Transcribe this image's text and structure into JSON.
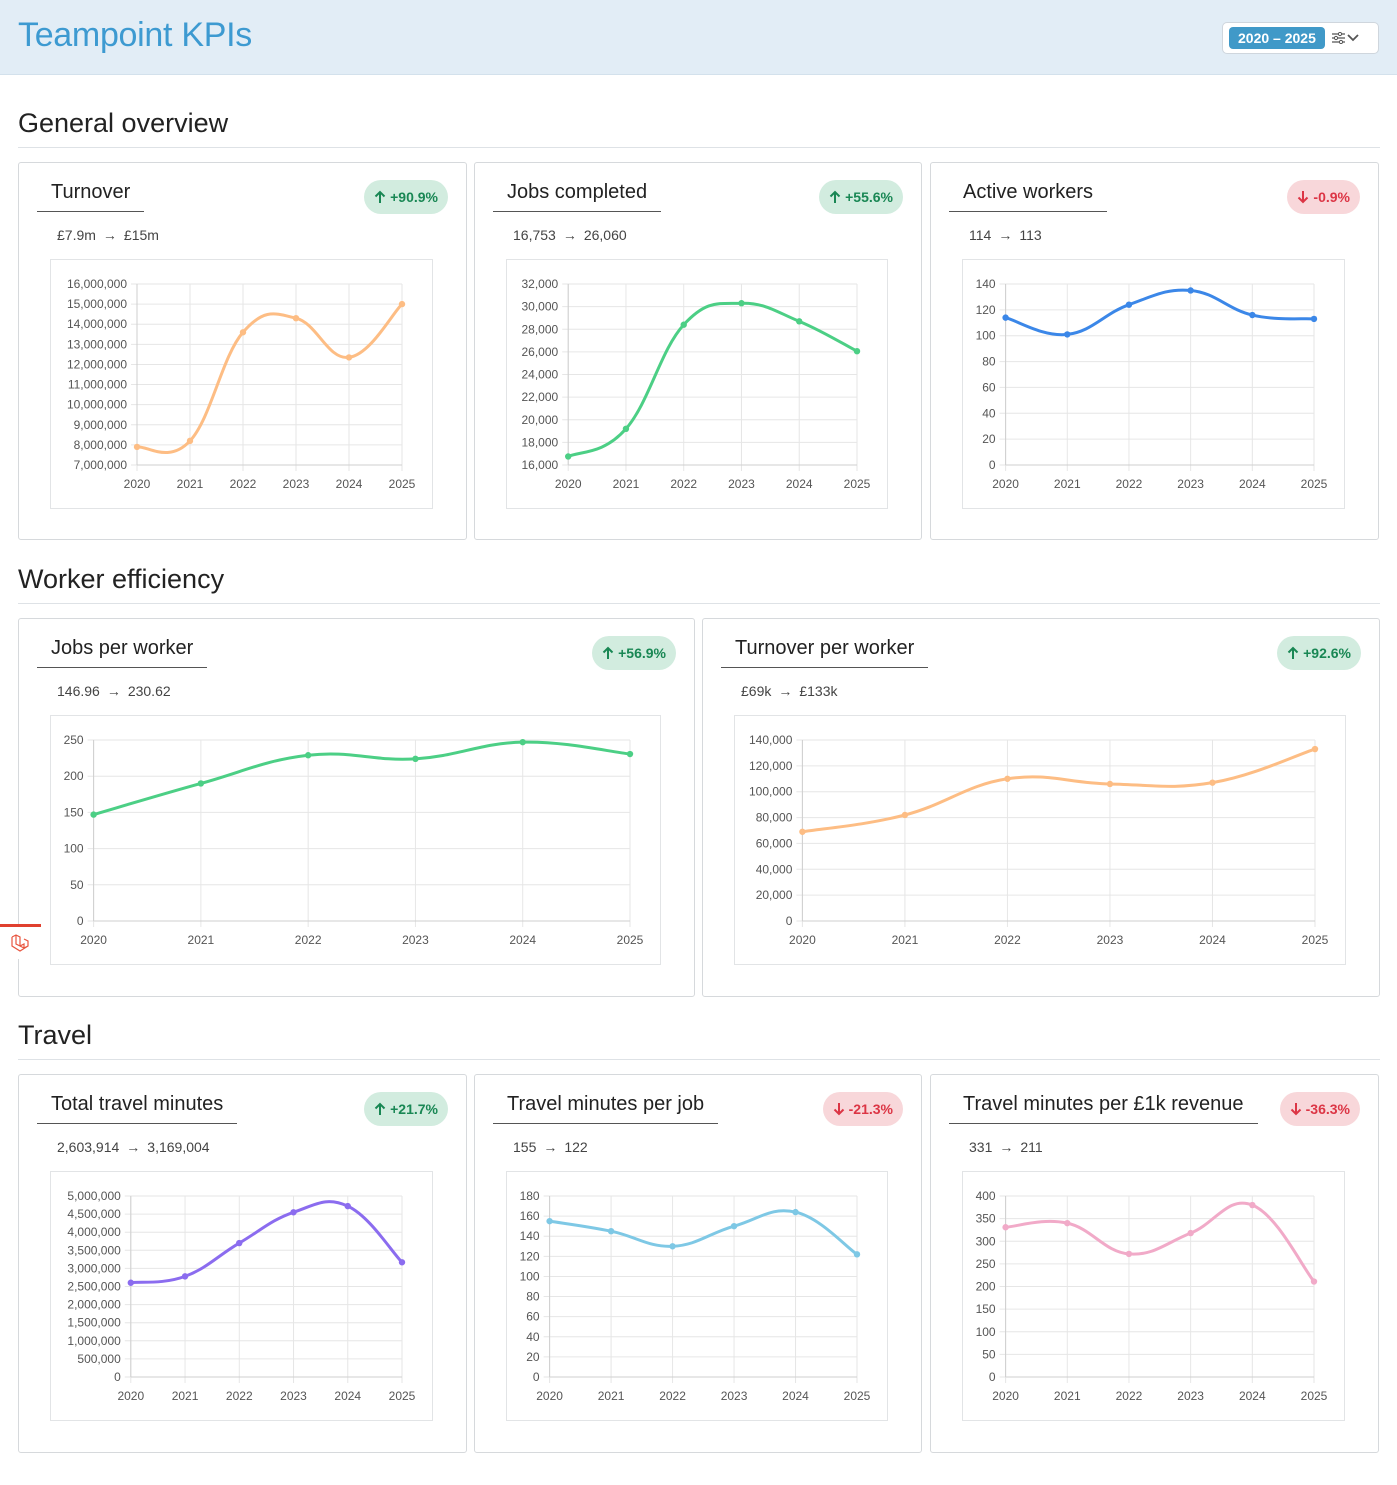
{
  "header": {
    "title": "Teampoint KPIs",
    "range": "2020 – 2025",
    "filter_icon": "sliders-icon",
    "chevron_icon": "chevron-down-icon"
  },
  "sections": [
    {
      "title": "General overview"
    },
    {
      "title": "Worker efficiency"
    },
    {
      "title": "Travel"
    }
  ],
  "cards": [
    {
      "title": "Turnover",
      "badge": "+90.9%",
      "trend": "up",
      "from": "£7.9m",
      "to": "£15m"
    },
    {
      "title": "Jobs completed",
      "badge": "+55.6%",
      "trend": "up",
      "from": "16,753",
      "to": "26,060"
    },
    {
      "title": "Active workers",
      "badge": "-0.9%",
      "trend": "down",
      "from": "114",
      "to": "113"
    },
    {
      "title": "Jobs per worker",
      "badge": "+56.9%",
      "trend": "up",
      "from": "146.96",
      "to": "230.62"
    },
    {
      "title": "Turnover per worker",
      "badge": "+92.6%",
      "trend": "up",
      "from": "£69k",
      "to": "£133k"
    },
    {
      "title": "Total travel minutes",
      "badge": "+21.7%",
      "trend": "up",
      "from": "2,603,914",
      "to": "3,169,004"
    },
    {
      "title": "Travel minutes per job",
      "badge": "-21.3%",
      "trend": "down",
      "from": "155",
      "to": "122"
    },
    {
      "title": "Travel minutes per £1k revenue",
      "badge": "-36.3%",
      "trend": "down",
      "from": "331",
      "to": "211"
    }
  ],
  "chart_data": [
    {
      "type": "line",
      "title": "Turnover",
      "categories": [
        "2020",
        "2021",
        "2022",
        "2023",
        "2024",
        "2025"
      ],
      "values": [
        7900000,
        8200000,
        13600000,
        14300000,
        12350000,
        15000000
      ],
      "ylim": [
        7000000,
        16000000
      ],
      "ystep": 1000000,
      "color": "#fdbd84"
    },
    {
      "type": "line",
      "title": "Jobs completed",
      "categories": [
        "2020",
        "2021",
        "2022",
        "2023",
        "2024",
        "2025"
      ],
      "values": [
        16753,
        19200,
        28400,
        30300,
        28700,
        26060
      ],
      "ylim": [
        16000,
        32000
      ],
      "ystep": 2000,
      "color": "#4ccf85"
    },
    {
      "type": "line",
      "title": "Active workers",
      "categories": [
        "2020",
        "2021",
        "2022",
        "2023",
        "2024",
        "2025"
      ],
      "values": [
        114,
        101,
        124,
        135,
        116,
        113
      ],
      "ylim": [
        0,
        140
      ],
      "ystep": 20,
      "color": "#3b87e8"
    },
    {
      "type": "line",
      "title": "Jobs per worker",
      "categories": [
        "2020",
        "2021",
        "2022",
        "2023",
        "2024",
        "2025"
      ],
      "values": [
        146.96,
        190,
        229,
        224,
        247,
        230.62
      ],
      "ylim": [
        0,
        250
      ],
      "ystep": 50,
      "color": "#4ccf85"
    },
    {
      "type": "line",
      "title": "Turnover per worker",
      "categories": [
        "2020",
        "2021",
        "2022",
        "2023",
        "2024",
        "2025"
      ],
      "values": [
        69000,
        82000,
        110000,
        106000,
        107000,
        133000
      ],
      "ylim": [
        0,
        140000
      ],
      "ystep": 20000,
      "color": "#fdbd84"
    },
    {
      "type": "line",
      "title": "Total travel minutes",
      "categories": [
        "2020",
        "2021",
        "2022",
        "2023",
        "2024",
        "2025"
      ],
      "values": [
        2603914,
        2780000,
        3700000,
        4550000,
        4720000,
        3169004
      ],
      "ylim": [
        0,
        5000000
      ],
      "ystep": 500000,
      "color": "#8b6cef"
    },
    {
      "type": "line",
      "title": "Travel minutes per job",
      "categories": [
        "2020",
        "2021",
        "2022",
        "2023",
        "2024",
        "2025"
      ],
      "values": [
        155,
        145,
        130,
        150,
        164,
        122
      ],
      "ylim": [
        0,
        180
      ],
      "ystep": 20,
      "color": "#7ec8e5"
    },
    {
      "type": "line",
      "title": "Travel minutes per £1k revenue",
      "categories": [
        "2020",
        "2021",
        "2022",
        "2023",
        "2024",
        "2025"
      ],
      "values": [
        331,
        340,
        272,
        318,
        380,
        211
      ],
      "ylim": [
        0,
        400
      ],
      "ystep": 50,
      "color": "#f1aac8"
    }
  ]
}
